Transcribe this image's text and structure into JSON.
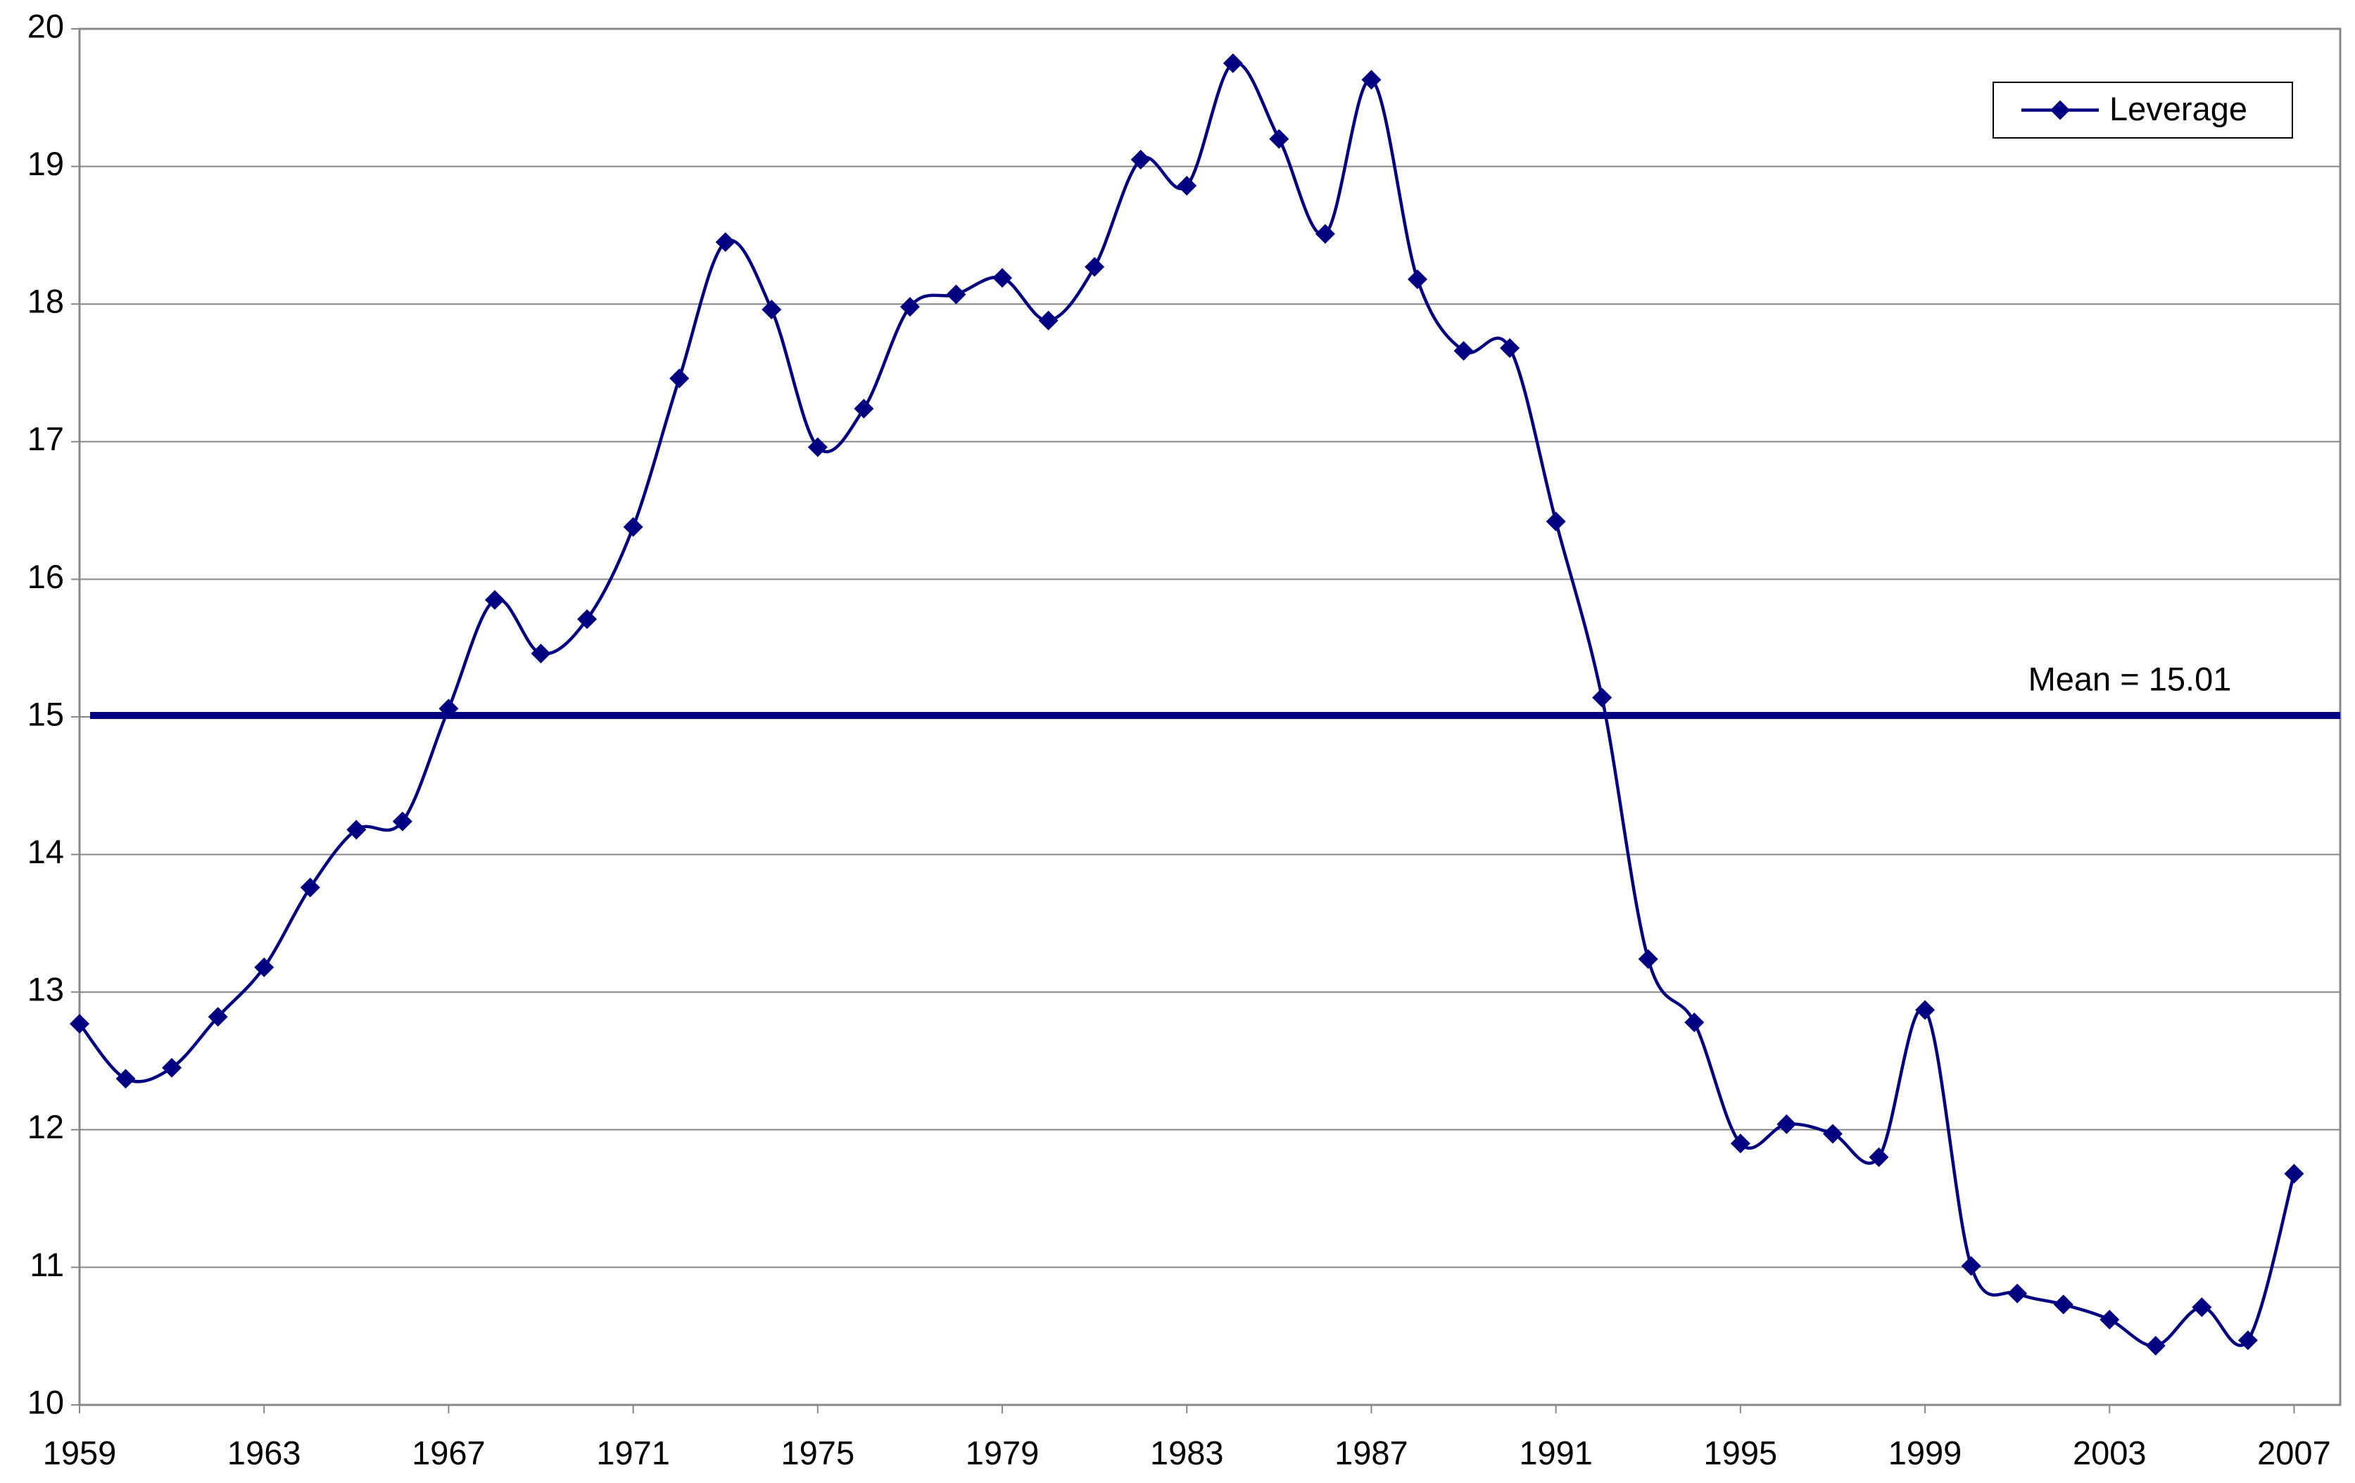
{
  "chart_data": {
    "type": "line",
    "x": [
      1959,
      1960,
      1961,
      1962,
      1963,
      1964,
      1965,
      1966,
      1967,
      1968,
      1969,
      1970,
      1971,
      1972,
      1973,
      1974,
      1975,
      1976,
      1977,
      1978,
      1979,
      1980,
      1981,
      1982,
      1983,
      1984,
      1985,
      1986,
      1987,
      1988,
      1989,
      1990,
      1991,
      1992,
      1993,
      1994,
      1995,
      1996,
      1997,
      1998,
      1999,
      2000,
      2001,
      2002,
      2003,
      2004,
      2005,
      2006,
      2007
    ],
    "series": [
      {
        "name": "Leverage",
        "color": "#000080",
        "values": [
          12.77,
          12.37,
          12.45,
          12.82,
          13.18,
          13.76,
          14.18,
          14.24,
          15.06,
          15.85,
          15.46,
          15.71,
          16.38,
          17.46,
          18.45,
          17.96,
          16.96,
          17.24,
          17.98,
          18.07,
          18.19,
          17.88,
          18.27,
          19.05,
          18.86,
          19.75,
          19.2,
          18.51,
          19.63,
          18.18,
          17.66,
          17.68,
          16.42,
          15.14,
          13.24,
          12.78,
          11.9,
          12.04,
          11.97,
          11.8,
          12.87,
          11.01,
          10.81,
          10.73,
          10.62,
          10.43,
          10.71,
          10.47,
          11.68
        ]
      }
    ],
    "mean": {
      "value": 15.01,
      "label": "Mean = 15.01",
      "color": "#000080"
    },
    "xlim": [
      1959,
      2008
    ],
    "xticks": [
      1959,
      1963,
      1967,
      1971,
      1975,
      1979,
      1983,
      1987,
      1991,
      1995,
      1999,
      2003,
      2007
    ],
    "ylim": [
      10,
      20
    ],
    "yticks": [
      10,
      11,
      12,
      13,
      14,
      15,
      16,
      17,
      18,
      19,
      20
    ],
    "grid": true,
    "smooth": true,
    "legend": "top-right"
  }
}
